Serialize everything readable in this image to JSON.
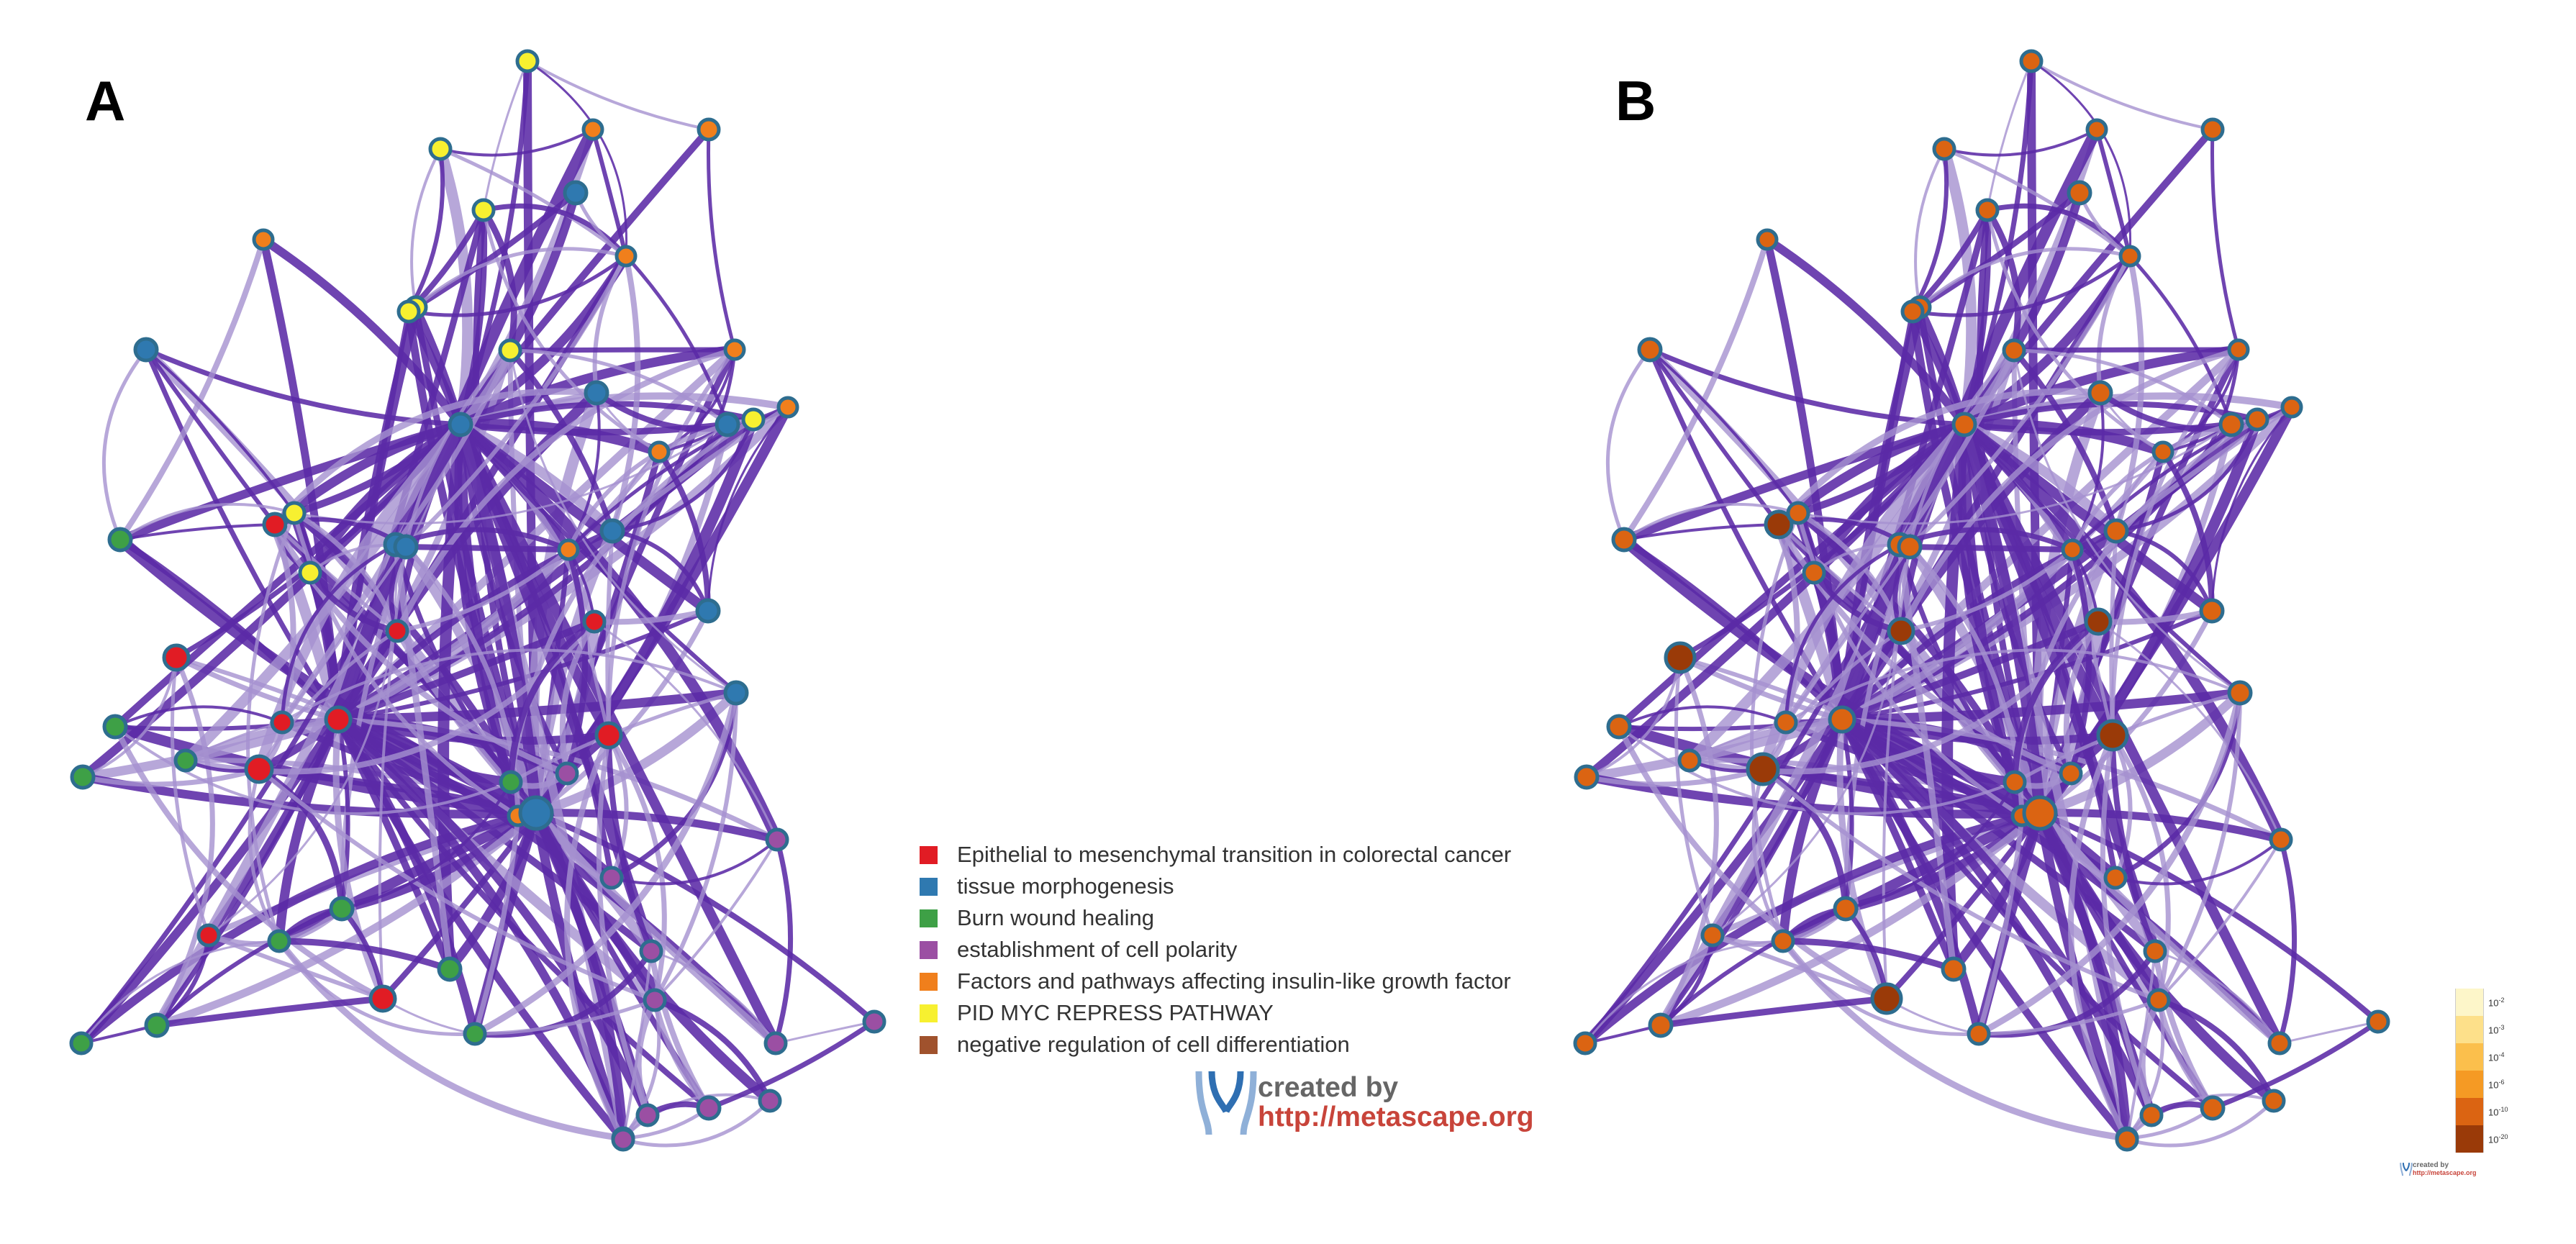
{
  "panels": [
    {
      "letter": "A",
      "mode": "cluster"
    },
    {
      "letter": "B",
      "mode": "pvalue"
    }
  ],
  "colors": {
    "edge": "#5b2aa6",
    "edge_light": "#a591cf",
    "node_border": "#2e6d8f",
    "clusters": {
      "red": "#e11c24",
      "blue": "#2f79b0",
      "green": "#3ea046",
      "purple": "#9b4fa3",
      "orange": "#f07f1c",
      "yellow": "#f7f030",
      "brown": "#a0522d"
    }
  },
  "legend": [
    {
      "label": "Epithelial to mesenchymal transition in colorectal cancer",
      "color": "#e11c24"
    },
    {
      "label": "tissue morphogenesis",
      "color": "#2f79b0"
    },
    {
      "label": "Burn wound healing",
      "color": "#3ea046"
    },
    {
      "label": "establishment of cell polarity",
      "color": "#9b4fa3"
    },
    {
      "label": "Factors and pathways affecting insulin-like growth factor",
      "color": "#f07f1c"
    },
    {
      "label": "PID MYC REPRESS PATHWAY",
      "color": "#f7f030"
    },
    {
      "label": "negative regulation of cell differentiation",
      "color": "#a0522d"
    }
  ],
  "pvalue_scale": [
    {
      "base": "10",
      "exp": "-2",
      "color": "#fdf6c9"
    },
    {
      "base": "10",
      "exp": "-3",
      "color": "#fde08a"
    },
    {
      "base": "10",
      "exp": "-4",
      "color": "#fbbf4c"
    },
    {
      "base": "10",
      "exp": "-6",
      "color": "#f59a24"
    },
    {
      "base": "10",
      "exp": "-10",
      "color": "#db6412"
    },
    {
      "base": "10",
      "exp": "-20",
      "color": "#9a3a08"
    }
  ],
  "credit": {
    "line1": "created by",
    "line2": "http://metascape.org"
  },
  "network": {
    "hubs": [
      {
        "cluster": "blue",
        "r": 15
      },
      {
        "cluster": "red",
        "r": 17
      },
      {
        "cluster": "blue",
        "r": 22
      }
    ],
    "nodes": [
      {
        "cluster": "yellow",
        "r": 14,
        "pval": 4
      },
      {
        "cluster": "yellow",
        "r": 14,
        "pval": 4
      },
      {
        "cluster": "yellow",
        "r": 14,
        "pval": 4
      },
      {
        "cluster": "orange",
        "r": 13,
        "pval": 4
      },
      {
        "cluster": "orange",
        "r": 14,
        "pval": 4
      },
      {
        "cluster": "orange",
        "r": 13,
        "pval": 4
      },
      {
        "cluster": "blue",
        "r": 15,
        "pval": 4
      },
      {
        "cluster": "orange",
        "r": 13,
        "pval": 4
      },
      {
        "cluster": "blue",
        "r": 15,
        "pval": 4
      },
      {
        "cluster": "yellow",
        "r": 14,
        "pval": 4
      },
      {
        "cluster": "yellow",
        "r": 14,
        "pval": 4
      },
      {
        "cluster": "yellow",
        "r": 14,
        "pval": 4
      },
      {
        "cluster": "orange",
        "r": 13,
        "pval": 4
      },
      {
        "cluster": "orange",
        "r": 13,
        "pval": 4
      },
      {
        "cluster": "blue",
        "r": 15,
        "pval": 4
      },
      {
        "cluster": "blue",
        "r": 15,
        "pval": 4
      },
      {
        "cluster": "yellow",
        "r": 14,
        "pval": 4
      },
      {
        "cluster": "orange",
        "r": 13,
        "pval": 4
      },
      {
        "cluster": "red",
        "r": 15,
        "pval": 5
      },
      {
        "cluster": "yellow",
        "r": 14,
        "pval": 4
      },
      {
        "cluster": "yellow",
        "r": 14,
        "pval": 4
      },
      {
        "cluster": "blue",
        "r": 15,
        "pval": 4
      },
      {
        "cluster": "blue",
        "r": 15,
        "pval": 4
      },
      {
        "cluster": "orange",
        "r": 13,
        "pval": 4
      },
      {
        "cluster": "blue",
        "r": 15,
        "pval": 4
      },
      {
        "cluster": "red",
        "r": 14,
        "pval": 5
      },
      {
        "cluster": "red",
        "r": 14,
        "pval": 5
      },
      {
        "cluster": "blue",
        "r": 15,
        "pval": 4
      },
      {
        "cluster": "green",
        "r": 15,
        "pval": 4
      },
      {
        "cluster": "red",
        "r": 17,
        "pval": 5
      },
      {
        "cluster": "green",
        "r": 15,
        "pval": 4
      },
      {
        "cluster": "red",
        "r": 14,
        "pval": 4
      },
      {
        "cluster": "green",
        "r": 15,
        "pval": 4
      },
      {
        "cluster": "green",
        "r": 14,
        "pval": 4
      },
      {
        "cluster": "red",
        "r": 18,
        "pval": 5
      },
      {
        "cluster": "red",
        "r": 17,
        "pval": 5
      },
      {
        "cluster": "blue",
        "r": 15,
        "pval": 4
      },
      {
        "cluster": "green",
        "r": 14,
        "pval": 4
      },
      {
        "cluster": "orange",
        "r": 13,
        "pval": 4
      },
      {
        "cluster": "purple",
        "r": 14,
        "pval": 4
      },
      {
        "cluster": "purple",
        "r": 14,
        "pval": 4
      },
      {
        "cluster": "purple",
        "r": 14,
        "pval": 4
      },
      {
        "cluster": "purple",
        "r": 14,
        "pval": 4
      },
      {
        "cluster": "red",
        "r": 14,
        "pval": 4
      },
      {
        "cluster": "green",
        "r": 15,
        "pval": 4
      },
      {
        "cluster": "green",
        "r": 14,
        "pval": 4
      },
      {
        "cluster": "green",
        "r": 15,
        "pval": 4
      },
      {
        "cluster": "red",
        "r": 17,
        "pval": 5
      },
      {
        "cluster": "green",
        "r": 14,
        "pval": 4
      },
      {
        "cluster": "green",
        "r": 15,
        "pval": 4
      },
      {
        "cluster": "green",
        "r": 14,
        "pval": 4
      },
      {
        "cluster": "purple",
        "r": 14,
        "pval": 4
      },
      {
        "cluster": "purple",
        "r": 14,
        "pval": 4
      },
      {
        "cluster": "purple",
        "r": 14,
        "pval": 4
      },
      {
        "cluster": "purple",
        "r": 14,
        "pval": 4
      },
      {
        "cluster": "purple",
        "r": 14,
        "pval": 4
      },
      {
        "cluster": "purple",
        "r": 15,
        "pval": 4
      },
      {
        "cluster": "purple",
        "r": 14,
        "pval": 4
      },
      {
        "cluster": "purple",
        "r": 14,
        "pval": 4
      }
    ]
  }
}
